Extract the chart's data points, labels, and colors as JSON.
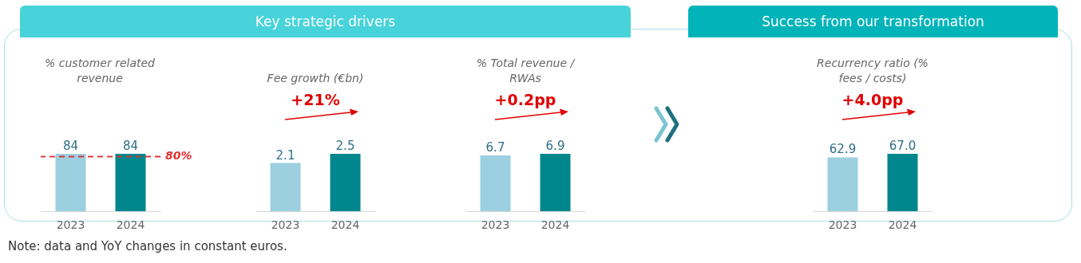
{
  "chart_data": [
    {
      "type": "other",
      "title": "Key strategic drivers"
    },
    {
      "type": "bar",
      "title": "% customer related revenue",
      "categories": [
        "2023",
        "2024"
      ],
      "values": [
        84,
        84
      ],
      "colors": [
        "#9ccfdf",
        "#00868d"
      ],
      "data_labels": true,
      "ref_lines": [
        {
          "axis": "y",
          "value": 80,
          "label": "80%",
          "color": "#e03030",
          "line_style": "dashed"
        }
      ]
    },
    {
      "type": "bar",
      "title": "Fee growth (€bn)",
      "categories": [
        "2023",
        "2024"
      ],
      "values": [
        2.1,
        2.5
      ],
      "colors": [
        "#9ccfdf",
        "#00868d"
      ],
      "data_labels": true,
      "annotations": [
        "+21%"
      ]
    },
    {
      "type": "bar",
      "title": "% Total revenue / RWAs",
      "categories": [
        "2023",
        "2024"
      ],
      "values": [
        6.7,
        6.9
      ],
      "colors": [
        "#9ccfdf",
        "#00868d"
      ],
      "data_labels": true,
      "annotations": [
        "+0.2pp"
      ]
    },
    {
      "type": "other",
      "title": "Success from our transformation"
    },
    {
      "type": "bar",
      "title": "Recurrency ratio (% fees / costs)",
      "categories": [
        "2023",
        "2024"
      ],
      "values": [
        62.9,
        67.0
      ],
      "value_labels": [
        "62.9",
        "67.0"
      ],
      "colors": [
        "#9ccfdf",
        "#00868d"
      ],
      "annotations": [
        "+4.0pp"
      ]
    },
    {
      "type": "other",
      "annotations": [
        "Note: data and YoY changes in constant euros."
      ]
    }
  ]
}
